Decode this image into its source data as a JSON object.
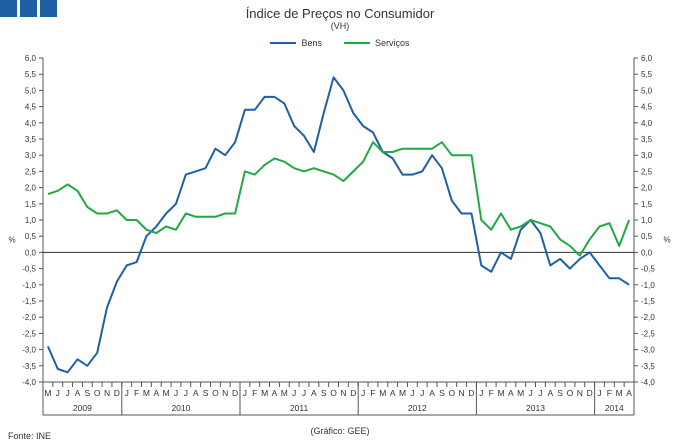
{
  "header": {
    "title": "Índice de Preços no Consumidor",
    "subtitle": "(VH)"
  },
  "footer": {
    "source": "Fonte: INE",
    "credit": "(Gráfico: GEE)"
  },
  "colors": {
    "logo": "#1f5fa6",
    "bens": "#1f5fa6",
    "servicos": "#22a844",
    "axis": "#555555"
  },
  "chart_data": {
    "type": "line",
    "title": "Índice de Preços no Consumidor",
    "subtitle": "(VH)",
    "ylabel_left": "%",
    "ylabel_right": "%",
    "ylim": [
      -4,
      6
    ],
    "ytick_labels": [
      "-4,0",
      "-3,5",
      "-3,0",
      "-2,5",
      "-2,0",
      "-1,5",
      "-1,0",
      "-0,5",
      "0,0",
      "0,5",
      "1,0",
      "1,5",
      "2,0",
      "2,5",
      "3,0",
      "3,5",
      "4,0",
      "4,5",
      "5,0",
      "5,5",
      "6,0"
    ],
    "months": [
      "M",
      "J",
      "J",
      "A",
      "S",
      "O",
      "N",
      "D",
      "J",
      "F",
      "M",
      "A",
      "M",
      "J",
      "J",
      "A",
      "S",
      "O",
      "N",
      "D",
      "J",
      "F",
      "M",
      "A",
      "M",
      "J",
      "J",
      "A",
      "S",
      "O",
      "N",
      "D",
      "J",
      "F",
      "M",
      "A",
      "M",
      "J",
      "J",
      "A",
      "S",
      "O",
      "N",
      "D",
      "J",
      "F",
      "M",
      "A",
      "M",
      "J",
      "J",
      "A",
      "S",
      "O",
      "N",
      "D",
      "J",
      "F",
      "M",
      "A"
    ],
    "years": [
      {
        "label": "2009",
        "start": 0,
        "count": 8
      },
      {
        "label": "2010",
        "start": 8,
        "count": 12
      },
      {
        "label": "2011",
        "start": 20,
        "count": 12
      },
      {
        "label": "2012",
        "start": 32,
        "count": 12
      },
      {
        "label": "2013",
        "start": 44,
        "count": 12
      },
      {
        "label": "2014",
        "start": 56,
        "count": 4
      }
    ],
    "legend": [
      "Bens",
      "Serviços"
    ],
    "series": [
      {
        "name": "Bens",
        "values": [
          -2.9,
          -3.6,
          -3.7,
          -3.3,
          -3.5,
          -3.1,
          -1.7,
          -0.9,
          -0.4,
          -0.3,
          0.5,
          0.8,
          1.2,
          1.5,
          2.4,
          2.5,
          2.6,
          3.2,
          3.0,
          3.4,
          4.4,
          4.4,
          4.8,
          4.8,
          4.6,
          3.9,
          3.6,
          3.1,
          4.3,
          5.4,
          5.0,
          4.3,
          3.9,
          3.7,
          3.1,
          2.9,
          2.4,
          2.4,
          2.5,
          3.0,
          2.6,
          1.6,
          1.2,
          1.2,
          -0.4,
          -0.6,
          0.0,
          -0.2,
          0.7,
          1.0,
          0.6,
          -0.4,
          -0.2,
          -0.5,
          -0.2,
          0.0,
          -0.4,
          -0.8,
          -0.8,
          -1.0
        ]
      },
      {
        "name": "Serviços",
        "values": [
          1.8,
          1.9,
          2.1,
          1.9,
          1.4,
          1.2,
          1.2,
          1.3,
          1.0,
          1.0,
          0.7,
          0.6,
          0.8,
          0.7,
          1.2,
          1.1,
          1.1,
          1.1,
          1.2,
          1.2,
          2.5,
          2.4,
          2.7,
          2.9,
          2.8,
          2.6,
          2.5,
          2.6,
          2.5,
          2.4,
          2.2,
          2.5,
          2.8,
          3.4,
          3.1,
          3.1,
          3.2,
          3.2,
          3.2,
          3.2,
          3.4,
          3.0,
          3.0,
          3.0,
          1.0,
          0.7,
          1.2,
          0.7,
          0.8,
          1.0,
          0.9,
          0.8,
          0.4,
          0.2,
          -0.1,
          0.4,
          0.8,
          0.9,
          0.2,
          1.0
        ]
      }
    ]
  }
}
